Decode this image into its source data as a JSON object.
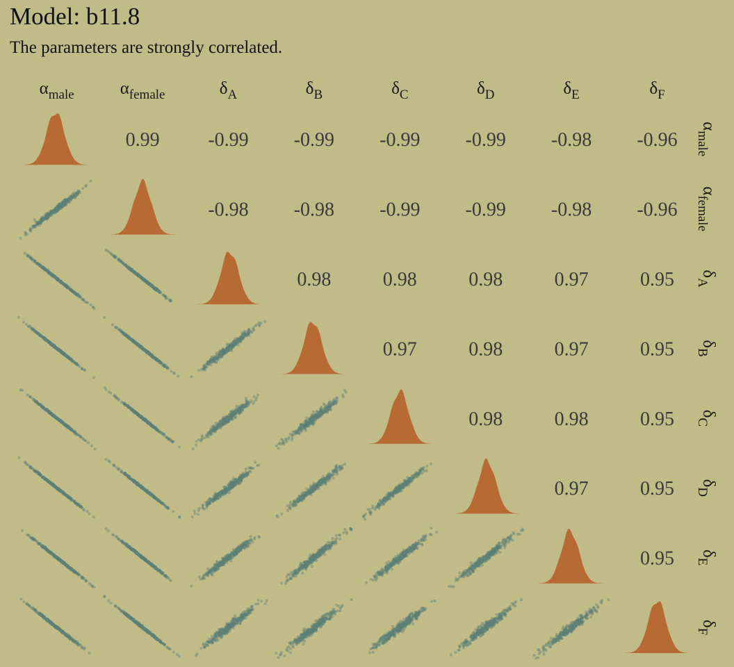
{
  "title": "Model: b11.8",
  "subtitle": "The parameters are strongly correlated.",
  "colors": {
    "background": "#c1bb87",
    "density": "#b86a34",
    "scatter": "#5d8078",
    "correlation_text": "#3a3a3a"
  },
  "chart_data": {
    "type": "pairs",
    "parameters": [
      {
        "id": "alpha_male",
        "symbol": "α",
        "subscript": "male"
      },
      {
        "id": "alpha_female",
        "symbol": "α",
        "subscript": "female"
      },
      {
        "id": "delta_A",
        "symbol": "δ",
        "subscript": "A"
      },
      {
        "id": "delta_B",
        "symbol": "δ",
        "subscript": "B"
      },
      {
        "id": "delta_C",
        "symbol": "δ",
        "subscript": "C"
      },
      {
        "id": "delta_D",
        "symbol": "δ",
        "subscript": "D"
      },
      {
        "id": "delta_E",
        "symbol": "δ",
        "subscript": "E"
      },
      {
        "id": "delta_F",
        "symbol": "δ",
        "subscript": "F"
      }
    ],
    "correlations": [
      [
        1.0,
        0.99,
        -0.99,
        -0.99,
        -0.99,
        -0.99,
        -0.98,
        -0.96
      ],
      [
        0.99,
        1.0,
        -0.98,
        -0.98,
        -0.99,
        -0.99,
        -0.98,
        -0.96
      ],
      [
        -0.99,
        -0.98,
        1.0,
        0.98,
        0.98,
        0.98,
        0.97,
        0.95
      ],
      [
        -0.99,
        -0.98,
        0.98,
        1.0,
        0.97,
        0.98,
        0.97,
        0.95
      ],
      [
        -0.99,
        -0.99,
        0.98,
        0.97,
        1.0,
        0.98,
        0.98,
        0.95
      ],
      [
        -0.99,
        -0.99,
        0.98,
        0.98,
        0.98,
        1.0,
        0.97,
        0.95
      ],
      [
        -0.98,
        -0.98,
        0.97,
        0.97,
        0.98,
        0.97,
        1.0,
        0.95
      ],
      [
        -0.96,
        -0.96,
        0.95,
        0.95,
        0.95,
        0.95,
        0.95,
        1.0
      ]
    ],
    "correlation_labels": [
      [
        "",
        "0.99",
        "-0.99",
        "-0.99",
        "-0.99",
        "-0.99",
        "-0.98",
        "-0.96"
      ],
      [
        "",
        "",
        "-0.98",
        "-0.98",
        "-0.99",
        "-0.99",
        "-0.98",
        "-0.96"
      ],
      [
        "",
        "",
        "",
        "0.98",
        "0.98",
        "0.98",
        "0.97",
        "0.95"
      ],
      [
        "",
        "",
        "",
        "",
        "0.97",
        "0.98",
        "0.97",
        "0.95"
      ],
      [
        "",
        "",
        "",
        "",
        "",
        "0.98",
        "0.98",
        "0.95"
      ],
      [
        "",
        "",
        "",
        "",
        "",
        "",
        "0.97",
        "0.95"
      ],
      [
        "",
        "",
        "",
        "",
        "",
        "",
        "",
        "0.95"
      ],
      [
        "",
        "",
        "",
        "",
        "",
        "",
        "",
        ""
      ]
    ],
    "upper_triangle": "correlation coefficients",
    "lower_triangle": "scatter of posterior samples",
    "diagonal": "marginal density"
  }
}
